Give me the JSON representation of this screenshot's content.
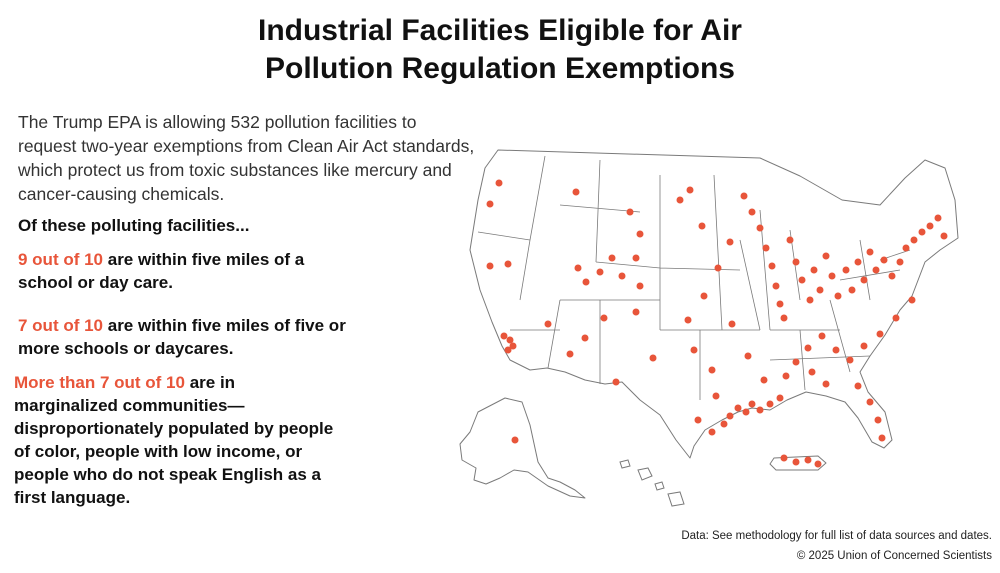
{
  "title_line1": "Industrial Facilities Eligible for Air",
  "title_line2": "Pollution Regulation Exemptions",
  "intro": "The Trump EPA is allowing 532 pollution facilities to request two-year exemptions from Clean Air Act standards, which protect us from toxic substances like mercury and cancer-causing chemicals.",
  "lead": "Of these polluting facilities...",
  "stats": [
    {
      "highlight": "9 out of 10",
      "text": " are within five miles of a school or day care."
    },
    {
      "highlight": "7 out of 10",
      "text": " are within five miles of five or more schools or daycares."
    },
    {
      "highlight": "More than 7 out of 10",
      "text": " are in marginalized communities—disproportionately populated by people of color, people with low income, or people who do not speak English as a first language."
    }
  ],
  "footer_data": "Data: See methodology for full list of data sources and dates.",
  "footer_copyright": "© 2025 Union of Concerned Scientists",
  "colors": {
    "accent": "#e8553a",
    "state_outline": "#7a7a7a"
  }
}
